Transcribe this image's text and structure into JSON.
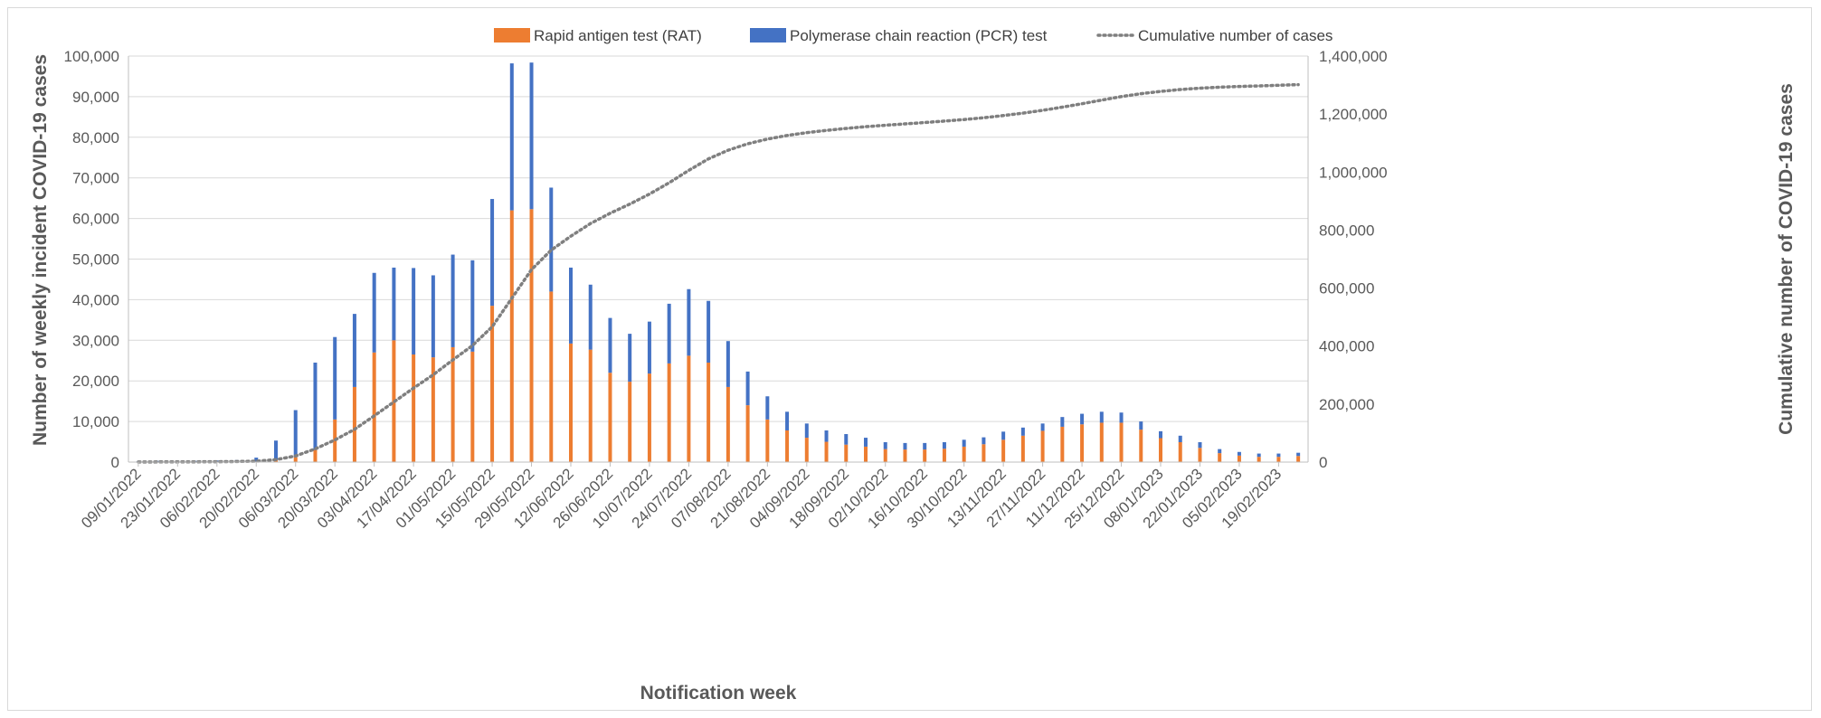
{
  "chart_data": {
    "type": "bar",
    "stacked": true,
    "xlabel": "Notification week",
    "ylabel": "Number of weekly incident COVID-19 cases",
    "y2label": "Cumulative number of COVID-19 cases",
    "ylim": [
      0,
      100000
    ],
    "y2lim": [
      0,
      1400000
    ],
    "yticks": [
      "0",
      "10,000",
      "20,000",
      "30,000",
      "40,000",
      "50,000",
      "60,000",
      "70,000",
      "80,000",
      "90,000",
      "100,000"
    ],
    "y2ticks": [
      "0",
      "200,000",
      "400,000",
      "600,000",
      "800,000",
      "1,000,000",
      "1,200,000",
      "1,400,000"
    ],
    "x_tick_labels": [
      "09/01/2022",
      "23/01/2022",
      "06/02/2022",
      "20/02/2022",
      "06/03/2022",
      "20/03/2022",
      "03/04/2022",
      "17/04/2022",
      "01/05/2022",
      "15/05/2022",
      "29/05/2022",
      "12/06/2022",
      "26/06/2022",
      "10/07/2022",
      "24/07/2022",
      "07/08/2022",
      "21/08/2022",
      "04/09/2022",
      "18/09/2022",
      "02/10/2022",
      "16/10/2022",
      "30/10/2022",
      "13/11/2022",
      "27/11/2022",
      "11/12/2022",
      "25/12/2022",
      "08/01/2023",
      "22/01/2023",
      "05/02/2023",
      "19/02/2023"
    ],
    "grid": true,
    "legend_position": "top",
    "series": [
      {
        "name": "Rapid antigen test (RAT)",
        "color": "#ED7D31",
        "values": [
          0,
          0,
          0,
          0,
          0,
          0,
          100,
          500,
          1200,
          3000,
          10500,
          18500,
          27000,
          30000,
          26500,
          25800,
          28300,
          27200,
          38500,
          62000,
          62300,
          42000,
          29200,
          27700,
          22000,
          19800,
          21800,
          24300,
          26200,
          24500,
          18500,
          14000,
          10500,
          7800,
          6000,
          5000,
          4300,
          3800,
          3200,
          3100,
          3100,
          3300,
          3800,
          4400,
          5500,
          6500,
          7700,
          8700,
          9300,
          9700,
          9700,
          8000,
          5900,
          4900,
          3500,
          2200,
          1600,
          1300,
          1300,
          1500
        ]
      },
      {
        "name": "Polymerase chain reaction (PCR) test",
        "color": "#4472C4",
        "values": [
          200,
          300,
          200,
          300,
          400,
          500,
          1100,
          5300,
          12800,
          24500,
          30800,
          36500,
          46600,
          47900,
          47800,
          46000,
          51100,
          49700,
          64800,
          98200,
          98400,
          67600,
          47900,
          43700,
          35500,
          31600,
          34600,
          39000,
          42600,
          39700,
          29800,
          22300,
          16200,
          12400,
          9500,
          7800,
          6900,
          6000,
          4900,
          4700,
          4700,
          4900,
          5500,
          6100,
          7500,
          8500,
          9500,
          11100,
          11900,
          12400,
          12200,
          10000,
          7600,
          6500,
          4900,
          3200,
          2500,
          2100,
          2100,
          2300
        ]
      },
      {
        "name": "Cumulative number of cases",
        "color": "#7F7F7F",
        "style": "dotted",
        "values": [
          200,
          500,
          700,
          1000,
          1400,
          1900,
          3000,
          8300,
          21100,
          45600,
          76400,
          112900,
          159500,
          207400,
          255200,
          301200,
          352300,
          402000,
          466800,
          565000,
          663400,
          731000,
          778900,
          822600,
          858100,
          889700,
          924300,
          963300,
          1005900,
          1045600,
          1075400,
          1097700,
          1113900,
          1126300,
          1135800,
          1143600,
          1150500,
          1156500,
          1161400,
          1166100,
          1170800,
          1175700,
          1181200,
          1187300,
          1194800,
          1203300,
          1212800,
          1223900,
          1235800,
          1248200,
          1260400,
          1270400,
          1278000,
          1284500,
          1289400,
          1292600,
          1295100,
          1297200,
          1299300,
          1301600
        ]
      }
    ]
  }
}
